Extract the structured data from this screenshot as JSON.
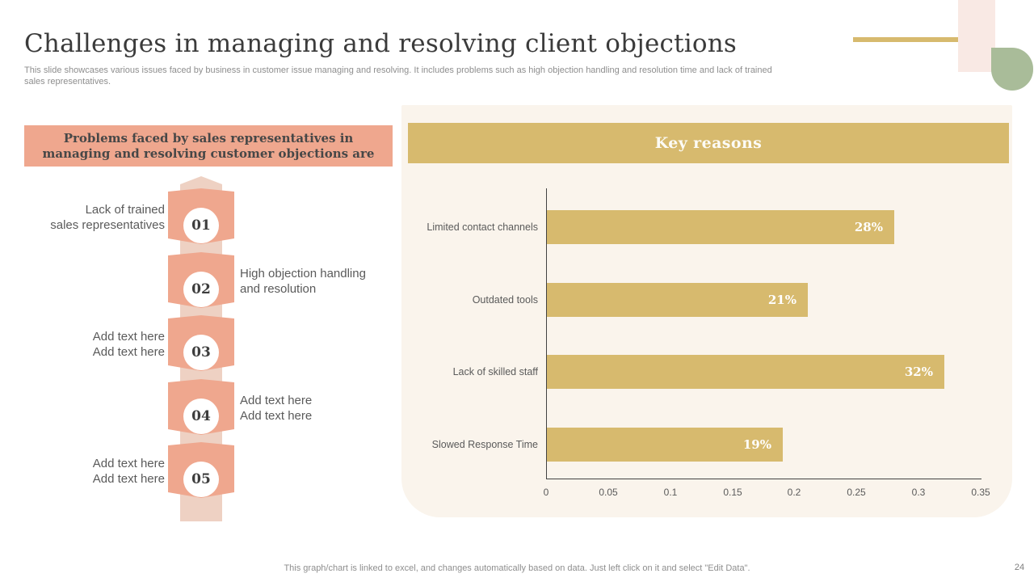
{
  "slide": {
    "title": "Challenges in managing and resolving client objections",
    "subtitle": "This slide showcases various issues faced by business in customer issue managing and resolving. It includes problems such as high objection handling and resolution time and lack of trained\nsales representatives.",
    "footer_note": "This graph/chart is linked to excel, and changes automatically based on data. Just left click on it and select \"Edit Data\".",
    "page_number": "24"
  },
  "left_panel": {
    "header": "Problems faced by sales representatives in\nmanaging and resolving customer objections are",
    "items": [
      {
        "number": "01",
        "side": "left",
        "label": "Lack of trained\nsales representatives"
      },
      {
        "number": "02",
        "side": "right",
        "label": "High objection handling\nand resolution"
      },
      {
        "number": "03",
        "side": "left",
        "label": "Add text here\nAdd text here"
      },
      {
        "number": "04",
        "side": "right",
        "label": "Add text here\nAdd text here"
      },
      {
        "number": "05",
        "side": "left",
        "label": "Add text here\nAdd text here"
      }
    ]
  },
  "chart_panel": {
    "header": "Key reasons"
  },
  "chart_data": {
    "type": "bar",
    "orientation": "horizontal",
    "title": "Key reasons",
    "categories": [
      "Limited contact channels",
      "Outdated tools",
      "Lack of skilled staff",
      "Slowed Response Time"
    ],
    "values": [
      0.28,
      0.21,
      0.32,
      0.19
    ],
    "value_labels": [
      "28%",
      "21%",
      "32%",
      "19%"
    ],
    "xlim": [
      0,
      0.35
    ],
    "x_ticks": [
      0,
      0.05,
      0.1,
      0.15,
      0.2,
      0.25,
      0.3,
      0.35
    ],
    "x_tick_labels": [
      "0",
      "0.05",
      "0.1",
      "0.15",
      "0.2",
      "0.25",
      "0.3",
      "0.35"
    ],
    "grid": false,
    "legend": "none",
    "bar_color": "#d7ba6e"
  },
  "colors": {
    "salmon": "#efa78e",
    "light_peach": "#eed1c3",
    "gold": "#d7ba6e",
    "cream_panel": "#faf4ec",
    "pink_corner": "#f9e9e4",
    "sage_green": "#a9bc99",
    "dark_text": "#3d3d3d",
    "gray_text": "#5a5a5a",
    "light_gray_text": "#8e8e8e",
    "white": "#ffffff"
  }
}
